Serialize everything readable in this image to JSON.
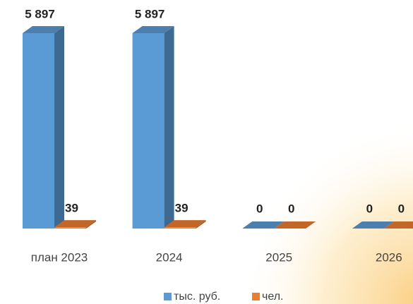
{
  "chart_data": {
    "type": "bar3d",
    "categories": [
      "план 2023",
      "2024",
      "2025",
      "2026"
    ],
    "series": [
      {
        "name": "тыс. руб.",
        "color": "#5b9bd5",
        "values": [
          5897,
          5897,
          0,
          0
        ],
        "value_labels": [
          "5 897",
          "5 897",
          "0",
          "0"
        ]
      },
      {
        "name": "чел.",
        "color": "#ed7d31",
        "values": [
          39,
          39,
          0,
          0
        ]
      }
    ]
  }
}
